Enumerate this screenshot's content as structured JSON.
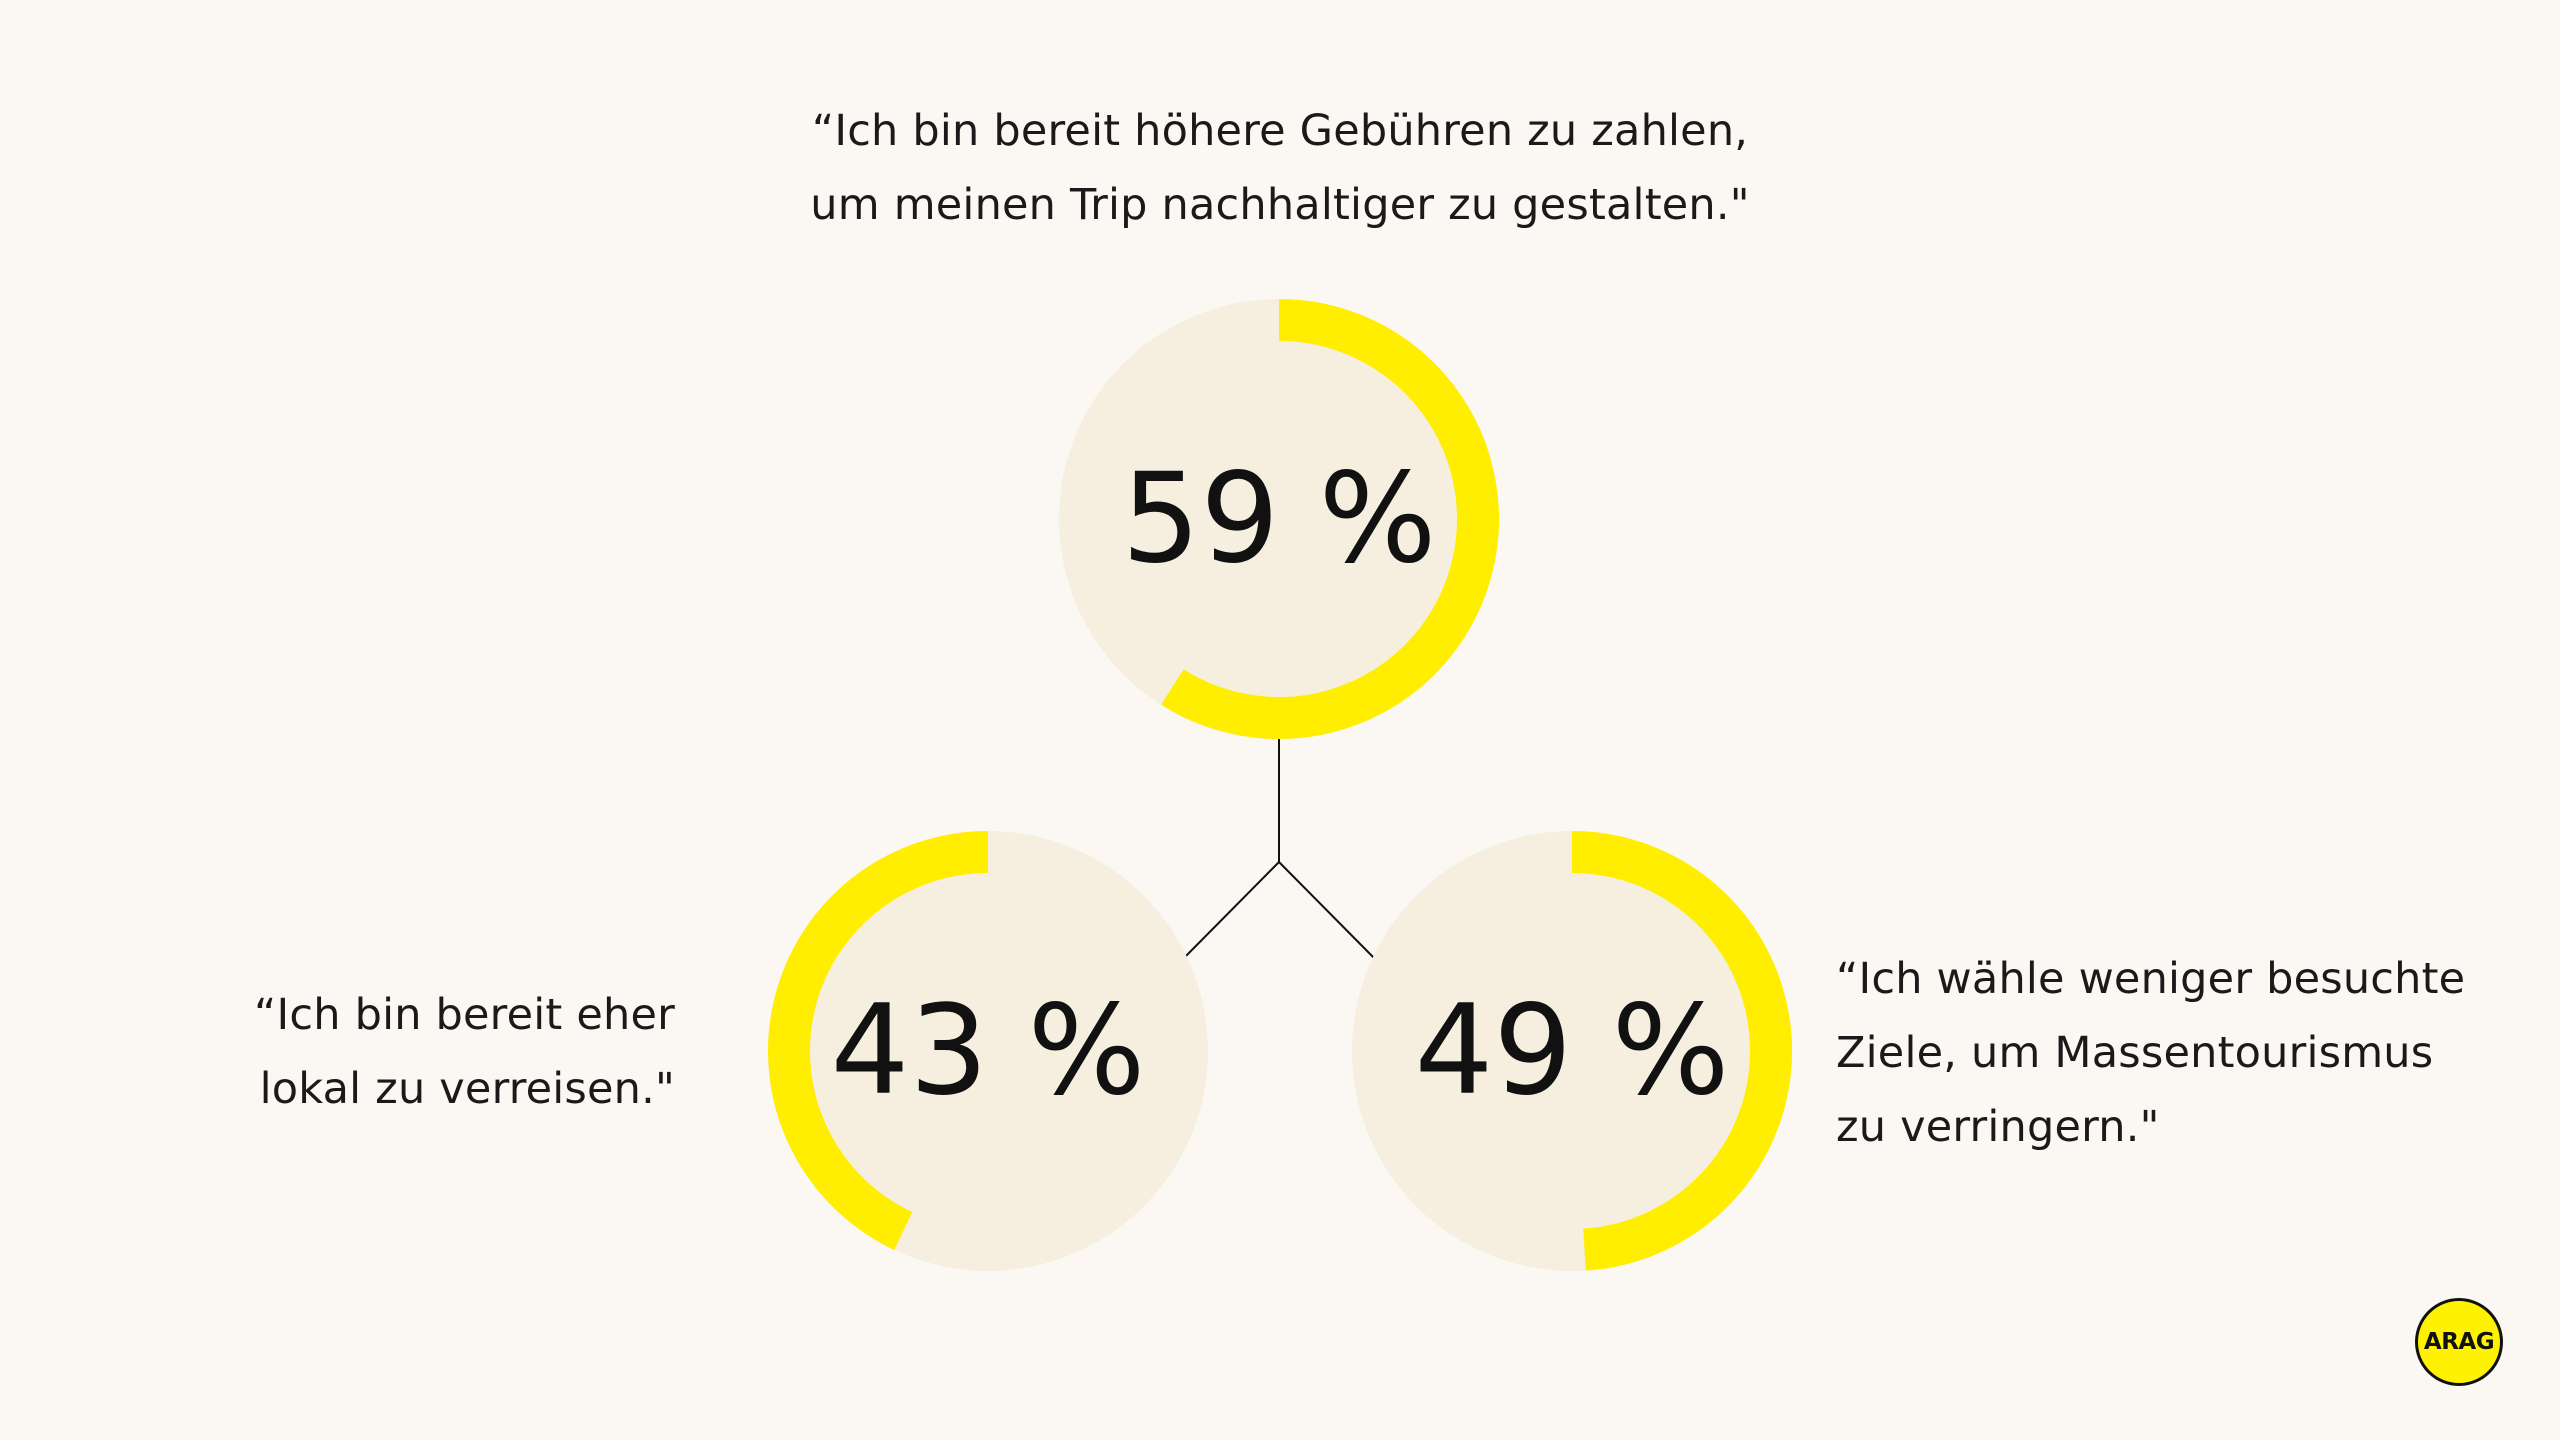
{
  "colors": {
    "background": "#fbf8f3",
    "circle_fill": "#f6efe0",
    "progress": "#ffee00",
    "text": "#111111",
    "connector": "#111111"
  },
  "quotes": {
    "top": [
      "“Ich bin bereit höhere Gebühren zu zahlen,",
      "um meinen Trip nachhaltiger zu gestalten.\""
    ],
    "left": [
      "“Ich bin bereit eher",
      "lokal zu verreisen.\""
    ],
    "right": [
      "“Ich wähle weniger besuchte",
      "Ziele, um Massentourismus",
      "zu verringern.\""
    ]
  },
  "chart_data": {
    "type": "donut-progress",
    "items": [
      {
        "id": "top",
        "value": 59,
        "label": "59 %"
      },
      {
        "id": "left",
        "value": 43,
        "label": "43 %"
      },
      {
        "id": "right",
        "value": 49,
        "label": "49 %"
      }
    ]
  },
  "logo": {
    "text": "ARAG"
  }
}
